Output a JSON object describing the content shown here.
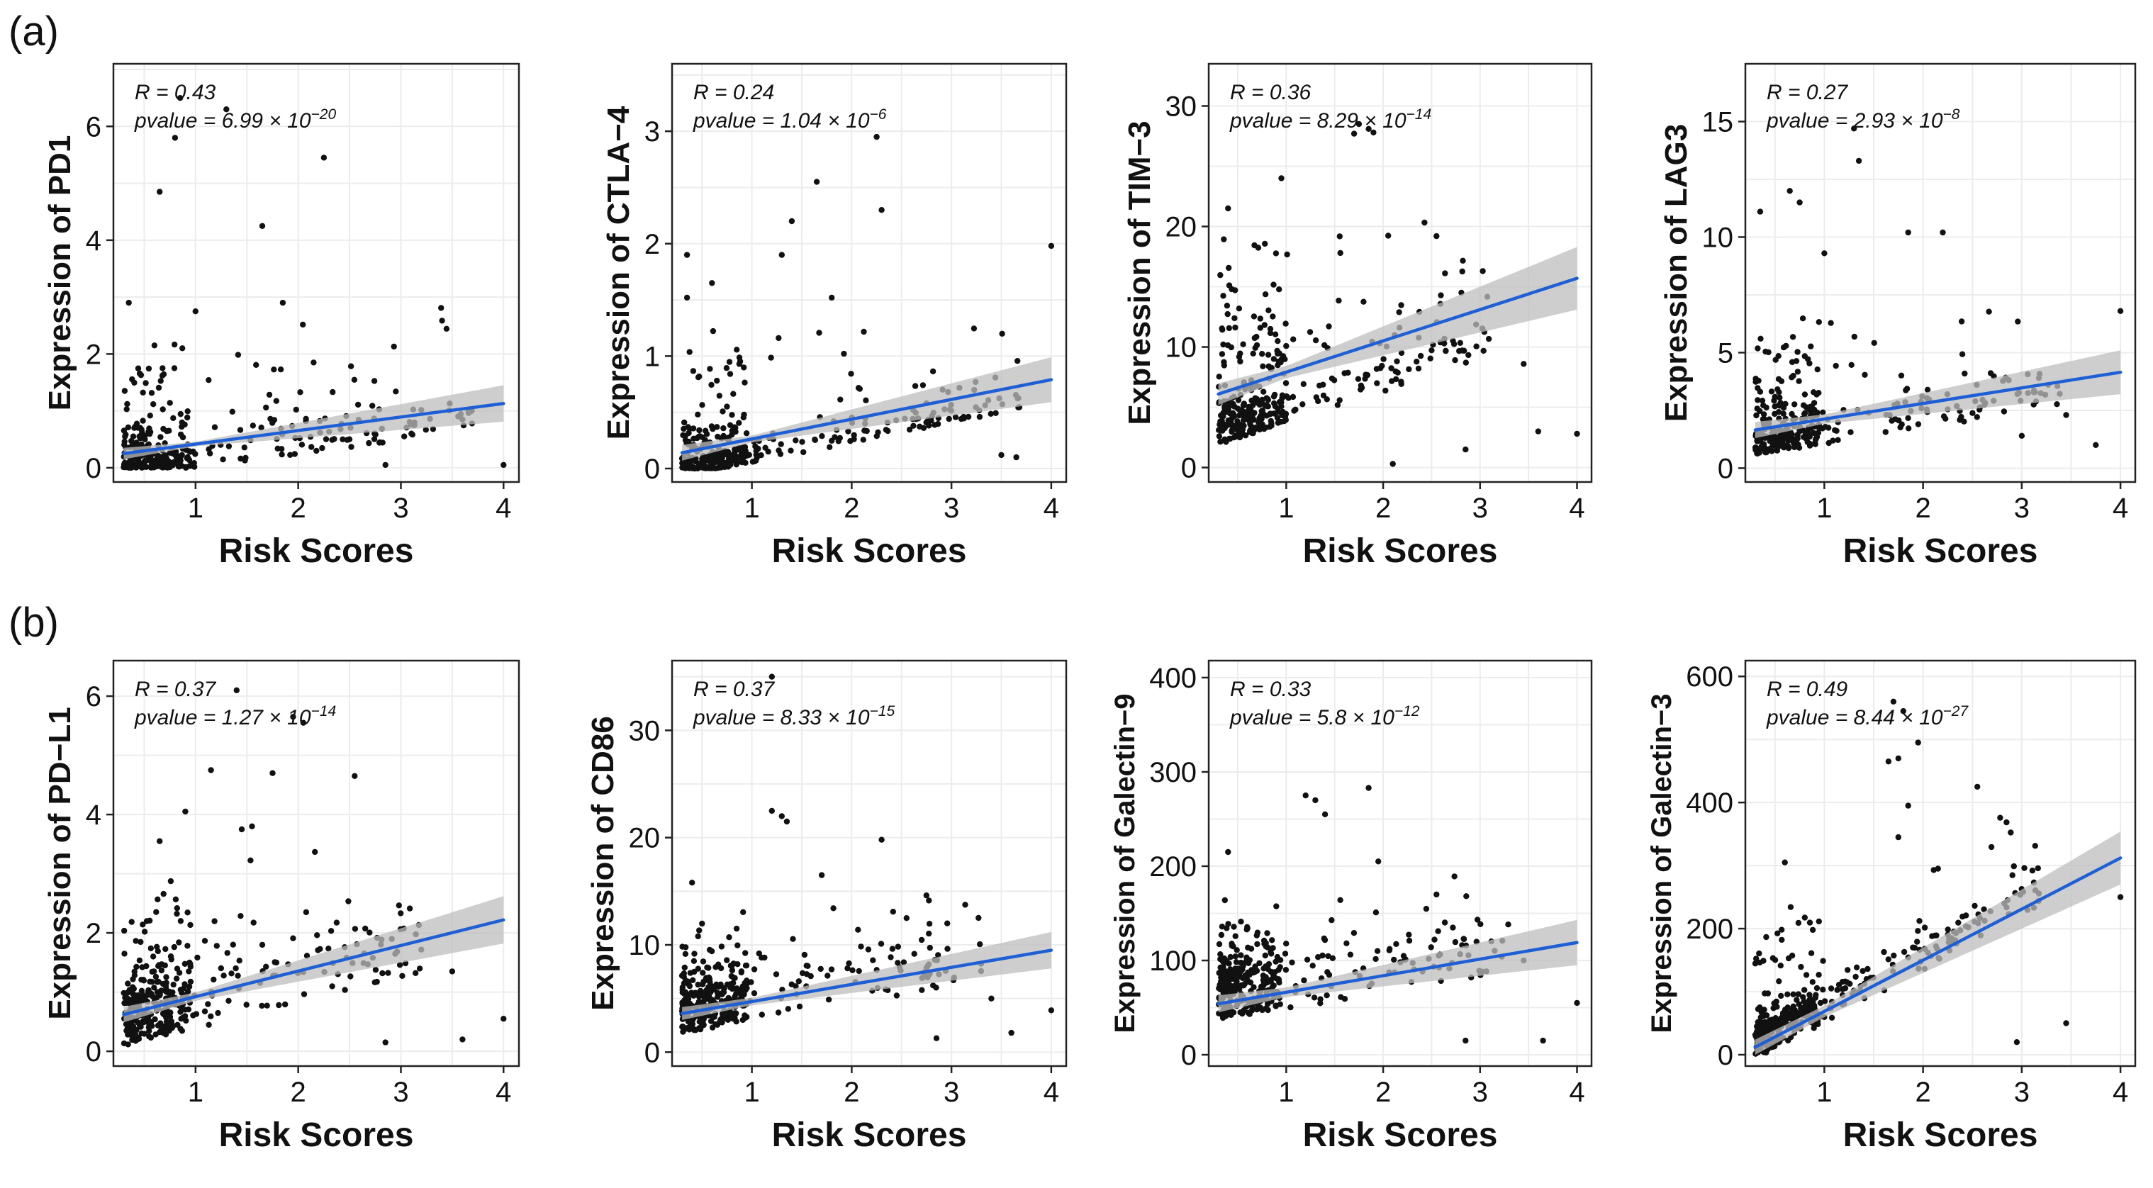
{
  "panel_labels": [
    "(a)",
    "(b)"
  ],
  "colors": {
    "point": "#111111",
    "fit_line": "#1f5fd6",
    "ci_band": "#bdbdbd",
    "grid": "#ececec",
    "frame": "#222222"
  },
  "chart_data": [
    {
      "type": "scatter",
      "panel": "a",
      "title": "",
      "xlabel": "Risk Scores",
      "ylabel": "Expression of PD1",
      "xlim": [
        0.2,
        4.15
      ],
      "ylim": [
        -0.25,
        7.1
      ],
      "xticks": [
        1,
        2,
        3,
        4
      ],
      "yticks": [
        0,
        2,
        4,
        6
      ],
      "r_text": "R = 0.43",
      "pvalue_base": "pvalue = 6.99 × 10",
      "pvalue_exp": "−20",
      "fit": {
        "x0": 0.3,
        "y0": 0.25,
        "x1": 4.0,
        "y1": 1.13
      },
      "ci_halfwidth": [
        0.1,
        0.04,
        0.32
      ],
      "grid": true,
      "notable_points": [
        [
          0.85,
          6.5
        ],
        [
          0.8,
          5.8
        ],
        [
          1.3,
          6.3
        ],
        [
          0.65,
          4.85
        ],
        [
          2.25,
          5.45
        ],
        [
          1.65,
          4.25
        ],
        [
          1.85,
          2.9
        ],
        [
          1.0,
          2.75
        ],
        [
          0.35,
          2.9
        ],
        [
          2.15,
          1.85
        ],
        [
          3.6,
          0.85
        ],
        [
          4.0,
          0.05
        ],
        [
          2.85,
          0.05
        ],
        [
          0.6,
          2.15
        ]
      ],
      "cloud": {
        "count": 340,
        "seed": 11,
        "x_lo": 0.3,
        "x_mode": 0.6,
        "x_hi": 3.6,
        "y_base_frac": 0.05,
        "y_spread": 0.7,
        "y_tail": 1.6
      }
    },
    {
      "type": "scatter",
      "panel": "a",
      "title": "",
      "xlabel": "Risk Scores",
      "ylabel": "Expression of CTLA−4",
      "xlim": [
        0.2,
        4.15
      ],
      "ylim": [
        -0.12,
        3.6
      ],
      "xticks": [
        1,
        2,
        3,
        4
      ],
      "yticks": [
        0,
        1,
        2,
        3
      ],
      "r_text": "R = 0.24",
      "pvalue_base": "pvalue = 1.04 × 10",
      "pvalue_exp": "−6",
      "fit": {
        "x0": 0.3,
        "y0": 0.14,
        "x1": 4.0,
        "y1": 0.79
      },
      "ci_halfwidth": [
        0.07,
        0.03,
        0.2
      ],
      "grid": true,
      "notable_points": [
        [
          2.25,
          2.95
        ],
        [
          1.65,
          2.55
        ],
        [
          2.3,
          2.3
        ],
        [
          1.4,
          2.2
        ],
        [
          0.35,
          1.9
        ],
        [
          1.3,
          1.9
        ],
        [
          4.0,
          1.98
        ],
        [
          0.35,
          1.52
        ],
        [
          0.6,
          1.65
        ],
        [
          1.8,
          1.52
        ],
        [
          3.5,
          0.12
        ],
        [
          3.65,
          0.1
        ],
        [
          2.75,
          0.58
        ]
      ],
      "cloud": {
        "count": 340,
        "seed": 23,
        "x_lo": 0.3,
        "x_mode": 0.6,
        "x_hi": 3.6,
        "y_base_frac": 0.04,
        "y_spread": 0.35,
        "y_tail": 0.9
      }
    },
    {
      "type": "scatter",
      "panel": "a",
      "title": "",
      "xlabel": "Risk Scores",
      "ylabel": "Expression of TIM−3",
      "xlim": [
        0.2,
        4.15
      ],
      "ylim": [
        -1.2,
        33.5
      ],
      "xticks": [
        1,
        2,
        3,
        4
      ],
      "yticks": [
        0,
        10,
        20,
        30
      ],
      "r_text": "R = 0.36",
      "pvalue_base": "pvalue = 8.29 × 10",
      "pvalue_exp": "−14",
      "fit": {
        "x0": 0.3,
        "y0": 6.1,
        "x1": 4.0,
        "y1": 15.7
      },
      "ci_halfwidth": [
        0.9,
        0.5,
        2.6
      ],
      "grid": true,
      "notable_points": [
        [
          1.75,
          28.5
        ],
        [
          1.85,
          28.1
        ],
        [
          1.7,
          27.7
        ],
        [
          0.95,
          24.0
        ],
        [
          0.4,
          21.5
        ],
        [
          1.9,
          27.8
        ],
        [
          2.55,
          19.2
        ],
        [
          3.45,
          8.6
        ],
        [
          2.85,
          1.5
        ],
        [
          3.6,
          3.0
        ],
        [
          4.0,
          2.8
        ],
        [
          2.1,
          0.3
        ]
      ],
      "cloud": {
        "count": 360,
        "seed": 37,
        "x_lo": 0.3,
        "x_mode": 0.65,
        "x_hi": 3.0,
        "y_base_frac": 0.08,
        "y_spread": 7.0,
        "y_tail": 10.0
      }
    },
    {
      "type": "scatter",
      "panel": "a",
      "title": "",
      "xlabel": "Risk Scores",
      "ylabel": "Expression of LAG3",
      "xlim": [
        0.2,
        4.15
      ],
      "ylim": [
        -0.6,
        17.5
      ],
      "xticks": [
        1,
        2,
        3,
        4
      ],
      "yticks": [
        0,
        5,
        10,
        15
      ],
      "r_text": "R = 0.27",
      "pvalue_base": "pvalue = 2.93 × 10",
      "pvalue_exp": "−8",
      "fit": {
        "x0": 0.3,
        "y0": 1.65,
        "x1": 4.0,
        "y1": 4.15
      },
      "ci_halfwidth": [
        0.35,
        0.2,
        0.95
      ],
      "grid": true,
      "notable_points": [
        [
          1.3,
          14.7
        ],
        [
          1.35,
          13.3
        ],
        [
          0.65,
          12.0
        ],
        [
          0.75,
          11.5
        ],
        [
          0.35,
          11.1
        ],
        [
          1.85,
          10.2
        ],
        [
          2.2,
          10.2
        ],
        [
          1.0,
          9.3
        ],
        [
          4.0,
          6.8
        ],
        [
          3.75,
          1.0
        ],
        [
          3.45,
          2.3
        ],
        [
          3.0,
          1.4
        ]
      ],
      "cloud": {
        "count": 340,
        "seed": 41,
        "x_lo": 0.3,
        "x_mode": 0.6,
        "x_hi": 3.3,
        "y_base_frac": 0.05,
        "y_spread": 1.8,
        "y_tail": 3.5
      }
    },
    {
      "type": "scatter",
      "panel": "b",
      "title": "",
      "xlabel": "Risk Scores",
      "ylabel": "Expression of PD−L1",
      "xlim": [
        0.2,
        4.15
      ],
      "ylim": [
        -0.25,
        6.6
      ],
      "xticks": [
        1,
        2,
        3,
        4
      ],
      "yticks": [
        0,
        2,
        4,
        6
      ],
      "r_text": "R = 0.37",
      "pvalue_base": "pvalue = 1.27 × 10",
      "pvalue_exp": "−14",
      "fit": {
        "x0": 0.3,
        "y0": 0.62,
        "x1": 4.0,
        "y1": 2.22
      },
      "ci_halfwidth": [
        0.13,
        0.07,
        0.4
      ],
      "grid": true,
      "notable_points": [
        [
          1.4,
          6.1
        ],
        [
          1.95,
          5.65
        ],
        [
          2.05,
          5.55
        ],
        [
          2.55,
          4.65
        ],
        [
          1.15,
          4.75
        ],
        [
          1.75,
          4.7
        ],
        [
          0.9,
          4.05
        ],
        [
          1.55,
          3.8
        ],
        [
          1.45,
          3.75
        ],
        [
          0.65,
          3.55
        ],
        [
          3.6,
          0.2
        ],
        [
          4.0,
          0.55
        ],
        [
          3.5,
          1.35
        ],
        [
          2.85,
          0.15
        ]
      ],
      "cloud": {
        "count": 360,
        "seed": 53,
        "x_lo": 0.3,
        "x_mode": 0.6,
        "x_hi": 3.2,
        "y_base_frac": 0.12,
        "y_spread": 0.9,
        "y_tail": 1.6
      }
    },
    {
      "type": "scatter",
      "panel": "b",
      "title": "",
      "xlabel": "Risk Scores",
      "ylabel": "Expression of CD86",
      "xlim": [
        0.2,
        4.15
      ],
      "ylim": [
        -1.3,
        36.5
      ],
      "xticks": [
        1,
        2,
        3,
        4
      ],
      "yticks": [
        0,
        10,
        20,
        30
      ],
      "r_text": "R = 0.37",
      "pvalue_base": "pvalue = 8.33 × 10",
      "pvalue_exp": "−15",
      "fit": {
        "x0": 0.3,
        "y0": 3.6,
        "x1": 4.0,
        "y1": 9.5
      },
      "ci_halfwidth": [
        0.6,
        0.35,
        1.7
      ],
      "grid": true,
      "notable_points": [
        [
          1.2,
          35.0
        ],
        [
          1.2,
          22.5
        ],
        [
          1.3,
          22.0
        ],
        [
          1.35,
          21.5
        ],
        [
          2.3,
          19.8
        ],
        [
          0.4,
          15.8
        ],
        [
          1.7,
          16.5
        ],
        [
          2.55,
          12.5
        ],
        [
          4.0,
          3.9
        ],
        [
          3.6,
          1.8
        ],
        [
          2.85,
          1.3
        ],
        [
          3.4,
          5.0
        ]
      ],
      "cloud": {
        "count": 360,
        "seed": 67,
        "x_lo": 0.3,
        "x_mode": 0.6,
        "x_hi": 3.2,
        "y_base_frac": 0.1,
        "y_spread": 3.0,
        "y_tail": 5.0
      }
    },
    {
      "type": "scatter",
      "panel": "b",
      "title": "",
      "xlabel": "Risk Scores",
      "ylabel": "Expression of Galectin−9",
      "xlim": [
        0.2,
        4.15
      ],
      "ylim": [
        -12,
        418
      ],
      "xticks": [
        1,
        2,
        3,
        4
      ],
      "yticks": [
        0,
        100,
        200,
        300,
        400
      ],
      "r_text": "R = 0.33",
      "pvalue_base": "pvalue = 5.8 × 10",
      "pvalue_exp": "−12",
      "fit": {
        "x0": 0.3,
        "y0": 54,
        "x1": 4.0,
        "y1": 119
      },
      "ci_halfwidth": [
        9,
        5,
        24
      ],
      "grid": true,
      "notable_points": [
        [
          1.2,
          275
        ],
        [
          1.3,
          270
        ],
        [
          1.85,
          283
        ],
        [
          1.4,
          255
        ],
        [
          0.4,
          215
        ],
        [
          1.95,
          205
        ],
        [
          2.55,
          170
        ],
        [
          3.45,
          100
        ],
        [
          3.65,
          15
        ],
        [
          4.0,
          55
        ],
        [
          2.85,
          15
        ]
      ],
      "cloud": {
        "count": 360,
        "seed": 79,
        "x_lo": 0.3,
        "x_mode": 0.6,
        "x_hi": 3.2,
        "y_base_frac": 0.12,
        "y_spread": 30,
        "y_tail": 55
      }
    },
    {
      "type": "scatter",
      "panel": "b",
      "title": "",
      "xlabel": "Risk Scores",
      "ylabel": "Expression of Galectin−3",
      "xlim": [
        0.2,
        4.15
      ],
      "ylim": [
        -18,
        625
      ],
      "xticks": [
        1,
        2,
        3,
        4
      ],
      "yticks": [
        0,
        200,
        400,
        600
      ],
      "r_text": "R = 0.49",
      "pvalue_base": "pvalue = 8.44 × 10",
      "pvalue_exp": "−27",
      "fit": {
        "x0": 0.3,
        "y0": 12,
        "x1": 4.0,
        "y1": 312
      },
      "ci_halfwidth": [
        12,
        9,
        42
      ],
      "grid": true,
      "notable_points": [
        [
          1.7,
          560
        ],
        [
          1.8,
          545
        ],
        [
          1.95,
          495
        ],
        [
          1.75,
          470
        ],
        [
          1.65,
          465
        ],
        [
          2.55,
          425
        ],
        [
          1.85,
          395
        ],
        [
          1.75,
          345
        ],
        [
          4.0,
          250
        ],
        [
          3.45,
          50
        ],
        [
          2.95,
          20
        ],
        [
          0.6,
          305
        ]
      ],
      "cloud": {
        "count": 360,
        "seed": 97,
        "x_lo": 0.3,
        "x_mode": 0.6,
        "x_hi": 3.1,
        "y_base_frac": 0.08,
        "y_spread": 30,
        "y_tail": 140
      }
    }
  ]
}
